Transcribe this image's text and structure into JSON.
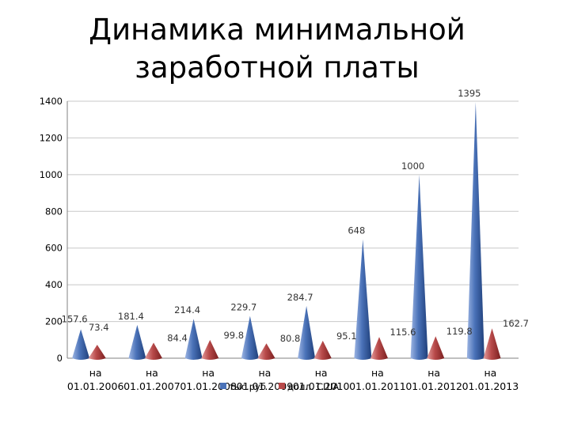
{
  "title": {
    "line1": "Динамика минимальной",
    "line2": "заработной платы"
  },
  "chart_data": {
    "type": "bar",
    "shape": "cone",
    "categories": [
      "на 01.01.2006",
      "на 01.01.2007",
      "на 01.01.2008",
      "на 01.01.2009",
      "на 01.01.2010",
      "на 01.01.2011",
      "на 01.01.2012",
      "на 01.01.2013"
    ],
    "series": [
      {
        "name": "тыс.руб",
        "color": "#4a72b8",
        "values": [
          157.6,
          181.4,
          214.4,
          229.7,
          284.7,
          648,
          1000,
          1395
        ]
      },
      {
        "name": "долл. США",
        "color": "#b84a4a",
        "values": [
          73.4,
          84.4,
          99.8,
          80.8,
          95.1,
          115.6,
          119.8,
          162.7
        ]
      }
    ],
    "ylim": [
      0,
      1400
    ],
    "yticks": [
      0,
      200,
      400,
      600,
      800,
      1000,
      1200,
      1400
    ],
    "grid": true,
    "legend": "bottom"
  }
}
